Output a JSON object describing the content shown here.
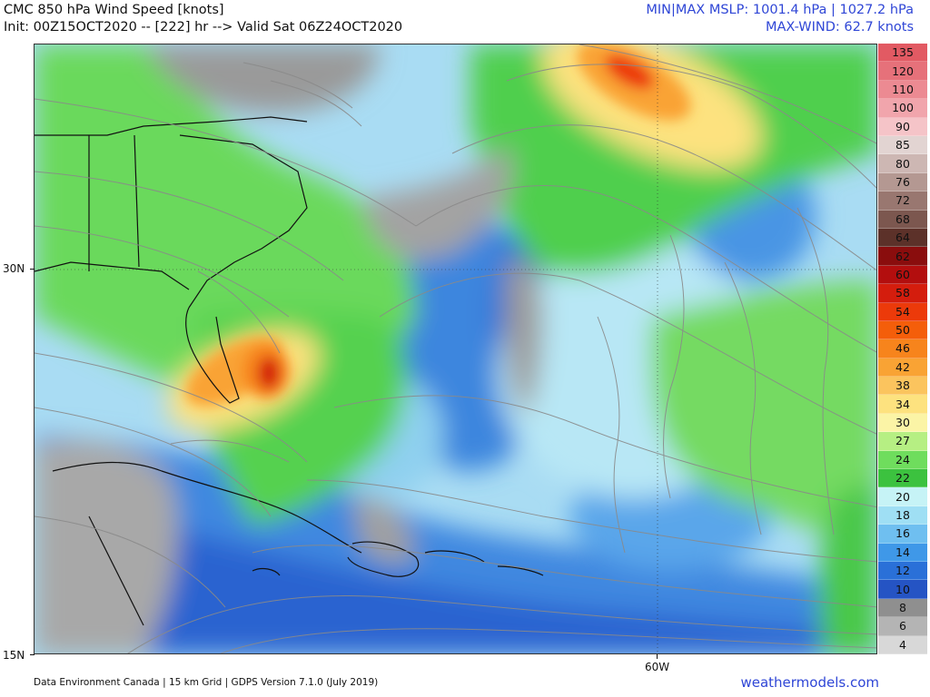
{
  "header": {
    "title": "CMC 850 hPa Wind Speed [knots]",
    "init": "Init: 00Z15OCT2020 -- [222] hr --> Valid Sat 06Z24OCT2020",
    "mslp": "MIN|MAX MSLP: 1001.4 hPa | 1027.2 hPa",
    "maxwind": "MAX-WIND: 62.7 knots"
  },
  "axes": {
    "lat_labels": [
      "30N",
      "15N"
    ],
    "lon_labels": [
      "60W"
    ]
  },
  "footer": {
    "credit": "Data Environment Canada | 15 km Grid | GDPS Version 7.1.0 (July 2019)",
    "site": "weathermodels.com"
  },
  "colorbar": {
    "levels": [
      {
        "label": "135",
        "color": "#e25a63"
      },
      {
        "label": "120",
        "color": "#e6717a"
      },
      {
        "label": "110",
        "color": "#ec8a92"
      },
      {
        "label": "100",
        "color": "#f1a5ac"
      },
      {
        "label": "90",
        "color": "#f5c4c8"
      },
      {
        "label": "85",
        "color": "#e2d4d2"
      },
      {
        "label": "80",
        "color": "#cdb7b3"
      },
      {
        "label": "76",
        "color": "#b49892"
      },
      {
        "label": "72",
        "color": "#997770"
      },
      {
        "label": "68",
        "color": "#7c574f"
      },
      {
        "label": "64",
        "color": "#5c3129"
      },
      {
        "label": "62",
        "color": "#8a0d0d"
      },
      {
        "label": "60",
        "color": "#b30e0e"
      },
      {
        "label": "58",
        "color": "#d41d0d"
      },
      {
        "label": "54",
        "color": "#ec3a0a"
      },
      {
        "label": "50",
        "color": "#f45e0a"
      },
      {
        "label": "46",
        "color": "#f7841c"
      },
      {
        "label": "42",
        "color": "#f9a334"
      },
      {
        "label": "38",
        "color": "#fbc45e"
      },
      {
        "label": "34",
        "color": "#fde27f"
      },
      {
        "label": "30",
        "color": "#fbf4a6"
      },
      {
        "label": "27",
        "color": "#b6ef83"
      },
      {
        "label": "24",
        "color": "#6fdd5d"
      },
      {
        "label": "22",
        "color": "#3cc23f"
      },
      {
        "label": "20",
        "color": "#c6f3f6"
      },
      {
        "label": "18",
        "color": "#9fdff4"
      },
      {
        "label": "16",
        "color": "#6fbff0"
      },
      {
        "label": "14",
        "color": "#3f98e8"
      },
      {
        "label": "12",
        "color": "#2a70d8"
      },
      {
        "label": "10",
        "color": "#2554c4"
      },
      {
        "label": "8",
        "color": "#8f8f8f"
      },
      {
        "label": "6",
        "color": "#b4b4b4"
      },
      {
        "label": "4",
        "color": "#d8d8d8"
      }
    ]
  }
}
